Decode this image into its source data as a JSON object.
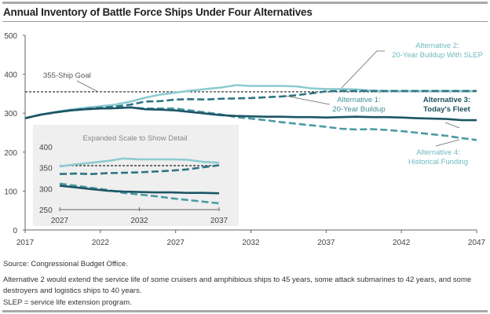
{
  "title": "Annual Inventory of Battle Force Ships Under Four Alternatives",
  "notes": {
    "source": "Source: Congressional Budget Office.",
    "alt2_note": "Alternative 2 would extend the service life of some cruisers and amphibious ships to 45 years, some attack submarines to 42 years, and some destroyers and logistics ships to 40 years.",
    "slep_def": "SLEP = service life extension program."
  },
  "chart_data": {
    "type": "line",
    "title": "Annual Inventory of Battle Force Ships Under Four Alternatives",
    "xlim": [
      2017,
      2047
    ],
    "ylim": [
      0,
      500
    ],
    "x_ticks": [
      "2017",
      "2022",
      "2027",
      "2032",
      "2037",
      "2042",
      "2047"
    ],
    "y_ticks": [
      "0",
      "100",
      "200",
      "300",
      "400",
      "500"
    ],
    "grid": false,
    "x": [
      2017,
      2018,
      2019,
      2020,
      2021,
      2022,
      2023,
      2024,
      2025,
      2026,
      2027,
      2028,
      2029,
      2030,
      2031,
      2032,
      2033,
      2034,
      2035,
      2036,
      2037,
      2038,
      2039,
      2040,
      2041,
      2042,
      2043,
      2044,
      2045,
      2046,
      2047
    ],
    "reference_line": {
      "label": "355-Ship Goal",
      "value": 355
    },
    "series": [
      {
        "name": "Alternative 2: 20-Year Buildup With SLEP",
        "style": "solid",
        "color": "#8ccbd0",
        "values": [
          287,
          296,
          303,
          309,
          314,
          318,
          322,
          330,
          340,
          348,
          353,
          358,
          362,
          366,
          372,
          370,
          370,
          370,
          369,
          364,
          362,
          362,
          361,
          358,
          357,
          357,
          357,
          357,
          357,
          357,
          357
        ]
      },
      {
        "name": "Alternative 1: 20-Year Buildup",
        "style": "dashed",
        "color": "#2f7483",
        "values": [
          287,
          296,
          302,
          307,
          311,
          314,
          317,
          322,
          330,
          331,
          335,
          336,
          335,
          337,
          338,
          339,
          341,
          343,
          346,
          351,
          356,
          357,
          357,
          357,
          357,
          357,
          357,
          357,
          357,
          357,
          357
        ]
      },
      {
        "name": "Alternative 3: Today's Fleet",
        "style": "solid",
        "color": "#1d5565",
        "values": [
          287,
          296,
          302,
          307,
          310,
          312,
          313,
          315,
          310,
          309,
          307,
          303,
          299,
          295,
          293,
          292,
          291,
          291,
          290,
          290,
          289,
          290,
          291,
          290,
          290,
          289,
          287,
          286,
          285,
          282,
          282
        ]
      },
      {
        "name": "Alternative 4: Historical Funding",
        "style": "dashed",
        "color": "#4a9ba3",
        "values": [
          287,
          296,
          302,
          307,
          310,
          312,
          313,
          315,
          312,
          312,
          312,
          307,
          302,
          297,
          290,
          286,
          282,
          277,
          273,
          269,
          265,
          260,
          258,
          259,
          257,
          254,
          250,
          246,
          242,
          236,
          231
        ]
      }
    ],
    "labels": {
      "alt1": [
        "Alternative 1:",
        "20-Year Buildup"
      ],
      "alt2": [
        "Alternative 2:",
        "20-Year Buildup With SLEP"
      ],
      "alt3": [
        "Alternative 3:",
        "Today's Fleet"
      ],
      "alt4": [
        "Alternative 4:",
        "Historical Funding"
      ]
    },
    "inset": {
      "title": "Expanded Scale to Show Detail",
      "xlim": [
        2027,
        2037
      ],
      "ylim": [
        250,
        400
      ],
      "x_ticks": [
        "2027",
        "2032",
        "2037"
      ],
      "y_ticks": [
        "250",
        "300",
        "350",
        "400"
      ]
    }
  }
}
